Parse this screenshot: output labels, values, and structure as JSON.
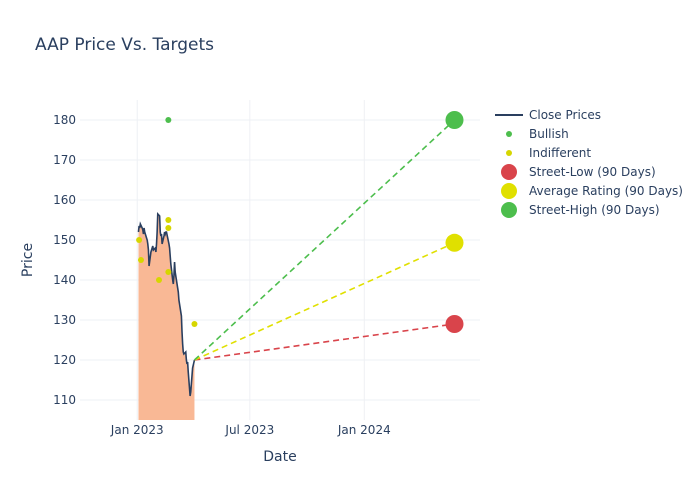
{
  "chart_data": {
    "type": "line",
    "title": "AAP Price Vs. Targets",
    "xlabel": "Date",
    "ylabel": "Price",
    "xlim": [
      "2022-10-01",
      "2024-07-05"
    ],
    "ylim": [
      105,
      185
    ],
    "x_ticks": [
      {
        "date": "2023-01-01",
        "label": "Jan 2023"
      },
      {
        "date": "2023-07-01",
        "label": "Jul 2023"
      },
      {
        "date": "2024-01-01",
        "label": "Jan 2024"
      }
    ],
    "y_ticks": [
      110,
      120,
      130,
      140,
      150,
      160,
      170,
      180
    ],
    "grid": true,
    "legend_position": "right",
    "colors": {
      "close": "#2a3f5f",
      "fill": "#f9b895",
      "bullish": "#4dbe4d",
      "indifferent": "#d6d600",
      "street_low": "#d9444b",
      "average": "#e0e000",
      "street_high": "#4dbe4d"
    },
    "close_prices": [
      [
        "2023-01-03",
        152
      ],
      [
        "2023-01-04",
        153.5
      ],
      [
        "2023-01-05",
        153
      ],
      [
        "2023-01-06",
        154
      ],
      [
        "2023-01-09",
        153
      ],
      [
        "2023-01-10",
        152.5
      ],
      [
        "2023-01-11",
        151.5
      ],
      [
        "2023-01-12",
        153
      ],
      [
        "2023-01-13",
        152
      ],
      [
        "2023-01-17",
        150
      ],
      [
        "2023-01-18",
        149
      ],
      [
        "2023-01-19",
        147.5
      ],
      [
        "2023-01-20",
        143.5
      ],
      [
        "2023-01-23",
        147
      ],
      [
        "2023-01-24",
        147.5
      ],
      [
        "2023-01-25",
        148
      ],
      [
        "2023-01-26",
        148.5
      ],
      [
        "2023-01-27",
        147.5
      ],
      [
        "2023-01-30",
        148
      ],
      [
        "2023-01-31",
        147
      ],
      [
        "2023-02-01",
        149
      ],
      [
        "2023-02-02",
        152
      ],
      [
        "2023-02-03",
        156.5
      ],
      [
        "2023-02-06",
        156
      ],
      [
        "2023-02-07",
        152
      ],
      [
        "2023-02-08",
        151
      ],
      [
        "2023-02-09",
        151.5
      ],
      [
        "2023-02-10",
        149
      ],
      [
        "2023-02-13",
        151
      ],
      [
        "2023-02-14",
        152
      ],
      [
        "2023-02-15",
        151.5
      ],
      [
        "2023-02-16",
        152
      ],
      [
        "2023-02-17",
        152
      ],
      [
        "2023-02-21",
        149
      ],
      [
        "2023-02-22",
        148
      ],
      [
        "2023-02-23",
        146
      ],
      [
        "2023-02-24",
        144
      ],
      [
        "2023-02-27",
        140
      ],
      [
        "2023-02-28",
        139
      ],
      [
        "2023-03-01",
        141
      ],
      [
        "2023-03-02",
        144.5
      ],
      [
        "2023-03-03",
        142
      ],
      [
        "2023-03-06",
        139
      ],
      [
        "2023-03-07",
        138
      ],
      [
        "2023-03-08",
        137
      ],
      [
        "2023-03-09",
        135
      ],
      [
        "2023-03-10",
        134
      ],
      [
        "2023-03-13",
        131
      ],
      [
        "2023-03-14",
        127
      ],
      [
        "2023-03-15",
        124
      ],
      [
        "2023-03-16",
        122
      ],
      [
        "2023-03-17",
        121.5
      ],
      [
        "2023-03-20",
        122
      ],
      [
        "2023-03-21",
        120
      ],
      [
        "2023-03-22",
        119
      ],
      [
        "2023-03-23",
        119.5
      ],
      [
        "2023-03-24",
        117
      ],
      [
        "2023-03-27",
        111
      ],
      [
        "2023-03-28",
        112
      ],
      [
        "2023-03-29",
        114
      ],
      [
        "2023-03-30",
        116
      ],
      [
        "2023-03-31",
        118
      ],
      [
        "2023-04-03",
        120
      ]
    ],
    "series": [
      {
        "name": "Close Prices",
        "type": "line"
      },
      {
        "name": "Bullish",
        "type": "scatter",
        "points": [
          [
            "2023-02-20",
            180
          ]
        ]
      },
      {
        "name": "Indifferent",
        "type": "scatter",
        "points": [
          [
            "2023-01-04",
            150
          ],
          [
            "2023-01-07",
            145
          ],
          [
            "2023-02-05",
            140
          ],
          [
            "2023-02-20",
            155
          ],
          [
            "2023-02-20",
            153
          ],
          [
            "2023-02-20",
            142
          ],
          [
            "2023-04-03",
            129
          ]
        ]
      },
      {
        "name": "Street-Low (90 Days)",
        "type": "target",
        "value": 129,
        "date": "2024-05-25"
      },
      {
        "name": "Average Rating (90 Days)",
        "type": "target",
        "value": 149.3,
        "date": "2024-05-25"
      },
      {
        "name": "Street-High (90 Days)",
        "type": "target",
        "value": 180,
        "date": "2024-05-25"
      }
    ],
    "projection_start": [
      "2023-04-03",
      120
    ]
  }
}
